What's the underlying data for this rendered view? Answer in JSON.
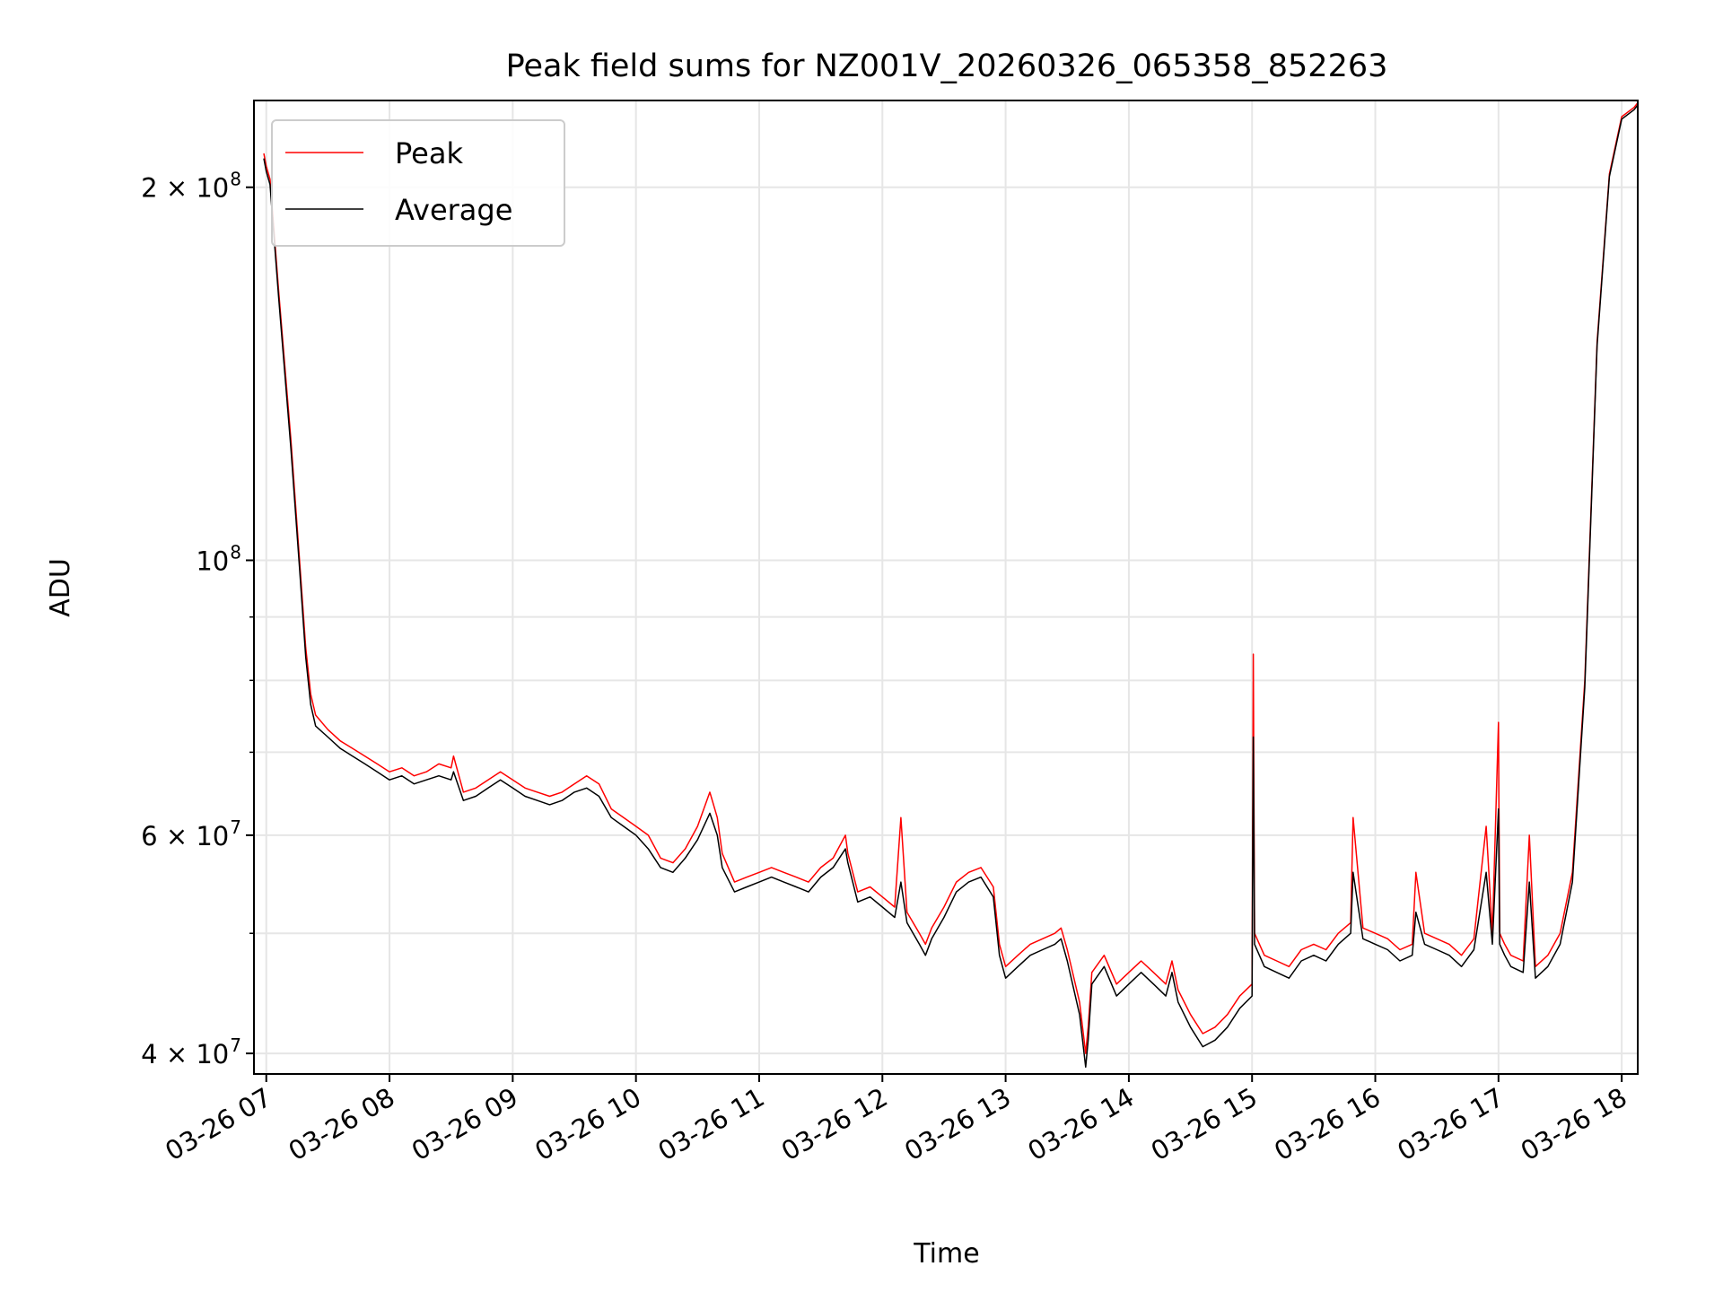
{
  "chart_data": {
    "type": "line",
    "title": "Peak field sums for NZ001V_20260326_065358_852263",
    "xlabel": "Time",
    "ylabel": "ADU",
    "x_unit": "hour of 2026-03-26 (local time)",
    "xlim": [
      6.9,
      18.13
    ],
    "ylim": [
      38500000,
      235000000
    ],
    "yscale": "log",
    "grid": true,
    "legend_position": "upper left",
    "x_ticks": [
      {
        "value": 7,
        "label": "03-26 07"
      },
      {
        "value": 8,
        "label": "03-26 08"
      },
      {
        "value": 9,
        "label": "03-26 09"
      },
      {
        "value": 10,
        "label": "03-26 10"
      },
      {
        "value": 11,
        "label": "03-26 11"
      },
      {
        "value": 12,
        "label": "03-26 12"
      },
      {
        "value": 13,
        "label": "03-26 13"
      },
      {
        "value": 14,
        "label": "03-26 14"
      },
      {
        "value": 15,
        "label": "03-26 15"
      },
      {
        "value": 16,
        "label": "03-26 16"
      },
      {
        "value": 17,
        "label": "03-26 17"
      },
      {
        "value": 18,
        "label": "03-26 18"
      }
    ],
    "y_ticks_major": [
      {
        "value": 40000000,
        "base": "4",
        "exp": "7"
      },
      {
        "value": 60000000,
        "base": "6",
        "exp": "7"
      },
      {
        "value": 100000000,
        "base": "",
        "exp": "8"
      },
      {
        "value": 200000000,
        "base": "2",
        "exp": "8"
      }
    ],
    "y_ticks_minor": [
      50000000,
      70000000,
      80000000,
      90000000
    ],
    "series": [
      {
        "name": "Peak",
        "color": "#ff0000",
        "x": [
          6.98,
          7.0,
          7.03,
          7.1,
          7.2,
          7.27,
          7.32,
          7.36,
          7.4,
          7.5,
          7.6,
          7.7,
          7.8,
          7.9,
          8.0,
          8.1,
          8.2,
          8.3,
          8.4,
          8.5,
          8.52,
          8.6,
          8.7,
          8.8,
          8.9,
          9.0,
          9.1,
          9.2,
          9.3,
          9.4,
          9.5,
          9.6,
          9.7,
          9.8,
          9.9,
          10.0,
          10.1,
          10.2,
          10.3,
          10.4,
          10.5,
          10.6,
          10.66,
          10.7,
          10.8,
          10.9,
          11.0,
          11.1,
          11.2,
          11.3,
          11.4,
          11.5,
          11.6,
          11.7,
          11.72,
          11.8,
          11.9,
          12.0,
          12.1,
          12.15,
          12.2,
          12.3,
          12.35,
          12.4,
          12.5,
          12.6,
          12.7,
          12.8,
          12.9,
          12.95,
          13.0,
          13.1,
          13.2,
          13.3,
          13.4,
          13.45,
          13.5,
          13.6,
          13.65,
          13.67,
          13.7,
          13.8,
          13.9,
          14.0,
          14.1,
          14.2,
          14.3,
          14.35,
          14.4,
          14.5,
          14.6,
          14.7,
          14.8,
          14.9,
          15.0,
          15.01,
          15.02,
          15.1,
          15.2,
          15.3,
          15.4,
          15.5,
          15.6,
          15.7,
          15.8,
          15.82,
          15.9,
          16.0,
          16.1,
          16.2,
          16.3,
          16.33,
          16.4,
          16.5,
          16.6,
          16.7,
          16.8,
          16.9,
          16.95,
          17.0,
          17.01,
          17.05,
          17.1,
          17.2,
          17.25,
          17.3,
          17.4,
          17.5,
          17.6,
          17.7,
          17.8,
          17.9,
          18.0,
          18.1,
          18.13
        ],
        "y": [
          213000000,
          208000000,
          203000000,
          165000000,
          125000000,
          100000000,
          85000000,
          78000000,
          75000000,
          73000000,
          71500000,
          70500000,
          69500000,
          68500000,
          67500000,
          68000000,
          67000000,
          67500000,
          68500000,
          68000000,
          69500000,
          65000000,
          65500000,
          66500000,
          67500000,
          66500000,
          65500000,
          65000000,
          64500000,
          65000000,
          66000000,
          67000000,
          66000000,
          63000000,
          62000000,
          61000000,
          60000000,
          57500000,
          57000000,
          58500000,
          61000000,
          65000000,
          62000000,
          58000000,
          55000000,
          55500000,
          56000000,
          56500000,
          56000000,
          55500000,
          55000000,
          56500000,
          57500000,
          60000000,
          58000000,
          54000000,
          54500000,
          53500000,
          52500000,
          62000000,
          52000000,
          50000000,
          49000000,
          50500000,
          52500000,
          55000000,
          56000000,
          56500000,
          54500000,
          49000000,
          47000000,
          48000000,
          49000000,
          49500000,
          50000000,
          50500000,
          48500000,
          44000000,
          40000000,
          42000000,
          46500000,
          48000000,
          45500000,
          46500000,
          47500000,
          46500000,
          45500000,
          47500000,
          45000000,
          43000000,
          41500000,
          42000000,
          43000000,
          44500000,
          45500000,
          84000000,
          50000000,
          48000000,
          47500000,
          47000000,
          48500000,
          49000000,
          48500000,
          50000000,
          51000000,
          62000000,
          50500000,
          50000000,
          49500000,
          48500000,
          49000000,
          56000000,
          50000000,
          49500000,
          49000000,
          48000000,
          49500000,
          61000000,
          50000000,
          74000000,
          50000000,
          49000000,
          48000000,
          47500000,
          60000000,
          47000000,
          48000000,
          50000000,
          56000000,
          80000000,
          150000000,
          205000000,
          228000000,
          232000000,
          234000000
        ]
      },
      {
        "name": "Average",
        "color": "#000000",
        "x": [
          6.98,
          7.0,
          7.03,
          7.1,
          7.2,
          7.27,
          7.32,
          7.36,
          7.4,
          7.5,
          7.6,
          7.7,
          7.8,
          7.9,
          8.0,
          8.1,
          8.2,
          8.3,
          8.4,
          8.5,
          8.52,
          8.6,
          8.7,
          8.8,
          8.9,
          9.0,
          9.1,
          9.2,
          9.3,
          9.4,
          9.5,
          9.6,
          9.7,
          9.8,
          9.9,
          10.0,
          10.1,
          10.2,
          10.3,
          10.4,
          10.5,
          10.6,
          10.66,
          10.7,
          10.8,
          10.9,
          11.0,
          11.1,
          11.2,
          11.3,
          11.4,
          11.5,
          11.6,
          11.7,
          11.72,
          11.8,
          11.9,
          12.0,
          12.1,
          12.15,
          12.2,
          12.3,
          12.35,
          12.4,
          12.5,
          12.6,
          12.7,
          12.8,
          12.9,
          12.95,
          13.0,
          13.1,
          13.2,
          13.3,
          13.4,
          13.45,
          13.5,
          13.6,
          13.65,
          13.67,
          13.7,
          13.8,
          13.9,
          14.0,
          14.1,
          14.2,
          14.3,
          14.35,
          14.4,
          14.5,
          14.6,
          14.7,
          14.8,
          14.9,
          15.0,
          15.01,
          15.02,
          15.1,
          15.2,
          15.3,
          15.4,
          15.5,
          15.6,
          15.7,
          15.8,
          15.82,
          15.9,
          16.0,
          16.1,
          16.2,
          16.3,
          16.33,
          16.4,
          16.5,
          16.6,
          16.7,
          16.8,
          16.9,
          16.95,
          17.0,
          17.01,
          17.05,
          17.1,
          17.2,
          17.25,
          17.3,
          17.4,
          17.5,
          17.6,
          17.7,
          17.8,
          17.9,
          18.0,
          18.1,
          18.13
        ],
        "y": [
          211000000,
          206000000,
          201000000,
          163000000,
          123000000,
          98500000,
          83500000,
          76500000,
          73500000,
          72000000,
          70500000,
          69500000,
          68500000,
          67500000,
          66500000,
          67000000,
          66000000,
          66500000,
          67000000,
          66500000,
          67500000,
          64000000,
          64500000,
          65500000,
          66500000,
          65500000,
          64500000,
          64000000,
          63500000,
          64000000,
          65000000,
          65500000,
          64500000,
          62000000,
          61000000,
          60000000,
          58500000,
          56500000,
          56000000,
          57500000,
          59500000,
          62500000,
          60000000,
          56500000,
          54000000,
          54500000,
          55000000,
          55500000,
          55000000,
          54500000,
          54000000,
          55500000,
          56500000,
          58500000,
          57000000,
          53000000,
          53500000,
          52500000,
          51500000,
          55000000,
          51000000,
          49000000,
          48000000,
          49500000,
          51500000,
          54000000,
          55000000,
          55500000,
          53500000,
          48000000,
          46000000,
          47000000,
          48000000,
          48500000,
          49000000,
          49500000,
          47500000,
          43000000,
          39000000,
          41000000,
          45500000,
          47000000,
          44500000,
          45500000,
          46500000,
          45500000,
          44500000,
          46500000,
          44000000,
          42000000,
          40500000,
          41000000,
          42000000,
          43500000,
          44500000,
          72000000,
          49000000,
          47000000,
          46500000,
          46000000,
          47500000,
          48000000,
          47500000,
          49000000,
          50000000,
          56000000,
          49500000,
          49000000,
          48500000,
          47500000,
          48000000,
          52000000,
          49000000,
          48500000,
          48000000,
          47000000,
          48500000,
          56000000,
          49000000,
          63000000,
          49000000,
          48000000,
          47000000,
          46500000,
          55000000,
          46000000,
          47000000,
          49000000,
          55000000,
          79000000,
          149000000,
          204000000,
          227000000,
          231000000,
          233000000
        ]
      }
    ]
  }
}
